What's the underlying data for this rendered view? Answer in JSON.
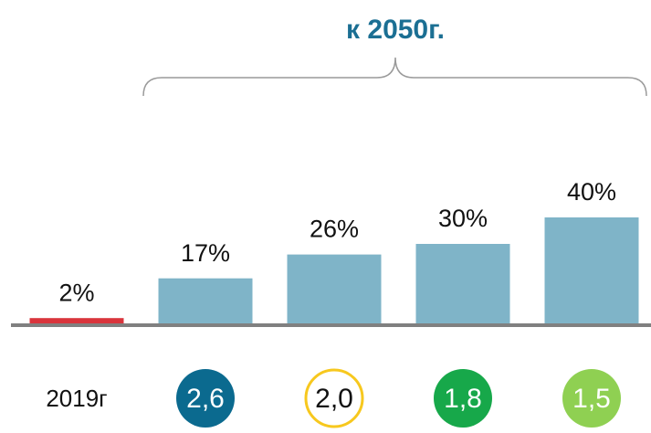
{
  "chart_data": {
    "type": "bar",
    "title": "к 2050г.",
    "categories": [
      "2019г",
      "2,6",
      "2,0",
      "1,8",
      "1,5"
    ],
    "category_colors": [
      null,
      "#0b6a8f",
      "#f7c81e",
      "#17a84a",
      "#8fd052"
    ],
    "category_outline": [
      false,
      false,
      true,
      false,
      false
    ],
    "values": [
      2,
      17,
      26,
      30,
      40
    ],
    "value_labels": [
      "2%",
      "17%",
      "26%",
      "30%",
      "40%"
    ],
    "colors": [
      "#d9343c",
      "#7fb4c8",
      "#7fb4c8",
      "#7fb4c8",
      "#7fb4c8"
    ],
    "title_color": "#1b6f93"
  }
}
